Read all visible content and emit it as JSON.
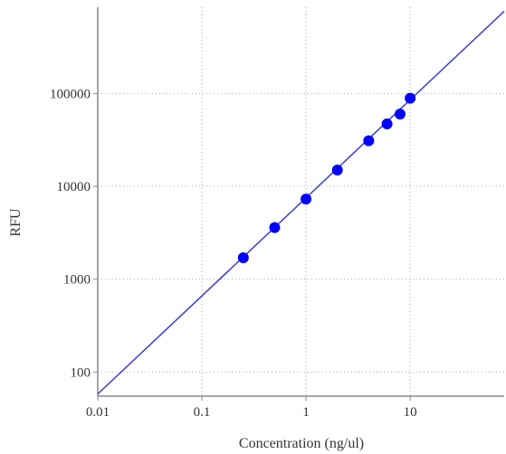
{
  "chart_data": {
    "type": "scatter",
    "x_scale": "log",
    "y_scale": "log",
    "xlabel": "Concentration (ng/ul)",
    "ylabel": "RFU",
    "xlim": [
      0.01,
      80
    ],
    "ylim": [
      55,
      850000
    ],
    "x_ticks": [
      0.01,
      0.1,
      1,
      10
    ],
    "y_ticks": [
      100,
      1000,
      10000,
      100000
    ],
    "x_tick_labels": [
      "0.01",
      "0.1",
      "1",
      "10"
    ],
    "y_tick_labels": [
      "100",
      "1000",
      "10000",
      "100000"
    ],
    "grid": true,
    "legend": "none",
    "points": [
      {
        "x": 0.25,
        "y": 1700
      },
      {
        "x": 0.5,
        "y": 3600
      },
      {
        "x": 1,
        "y": 7300
      },
      {
        "x": 2,
        "y": 15000
      },
      {
        "x": 4,
        "y": 31000
      },
      {
        "x": 6,
        "y": 47000
      },
      {
        "x": 8,
        "y": 60000
      },
      {
        "x": 10,
        "y": 89000
      }
    ],
    "fit_line": {
      "x": [
        0.01,
        80
      ],
      "y": [
        58,
        770000
      ]
    },
    "colors": {
      "points": "#0000ff",
      "line": "#3a3ad6",
      "grid": "#aaaaaa",
      "axis": "#888888"
    }
  }
}
